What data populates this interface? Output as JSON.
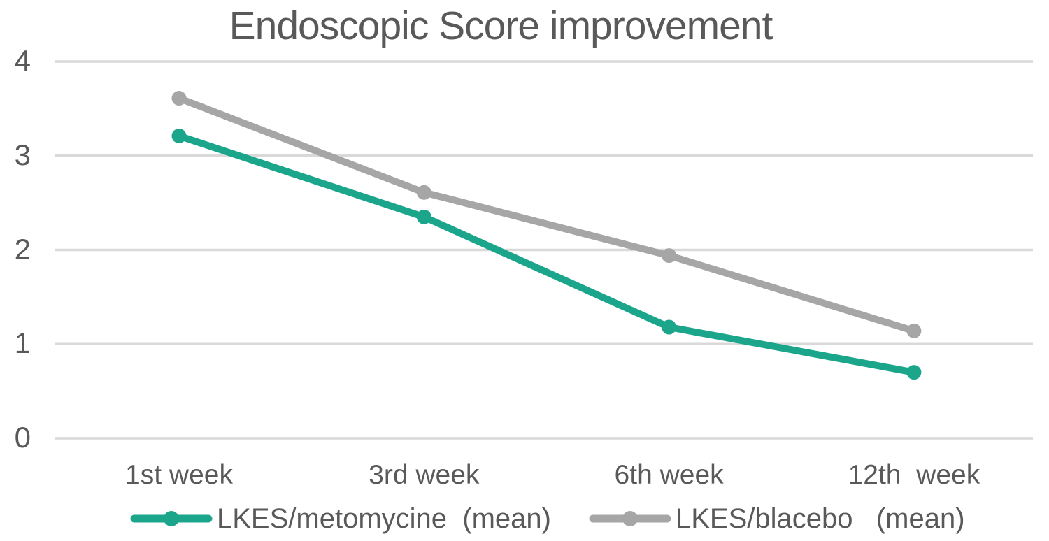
{
  "chart_data": {
    "type": "line",
    "title": "Endoscopic Score improvement",
    "categories": [
      "1st week",
      "3rd week",
      "6th week",
      "12th  week"
    ],
    "series": [
      {
        "name": "LKES/metomycine  (mean)",
        "values": [
          3.21,
          2.35,
          1.18,
          0.7
        ],
        "color": "#1BA68C"
      },
      {
        "name": "LKES/blacebo   (mean)",
        "values": [
          3.61,
          2.61,
          1.94,
          1.14
        ],
        "color": "#A6A6A6"
      }
    ],
    "xlabel": "",
    "ylabel": "",
    "ylim": [
      0,
      4
    ],
    "yticks": [
      4,
      3,
      2,
      1,
      0
    ],
    "grid": true,
    "legend_position": "bottom",
    "colors": {
      "title_text": "#595959",
      "axis_text": "#595959",
      "gridline": "#D9D9D9",
      "background": "#FFFFFF"
    }
  }
}
